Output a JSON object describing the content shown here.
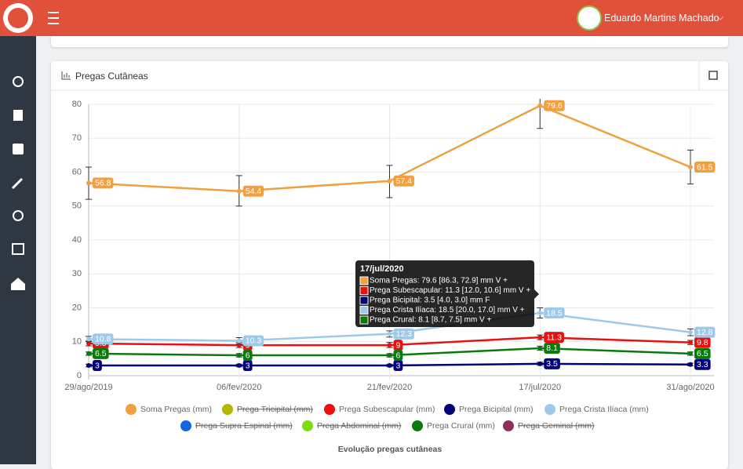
{
  "header": {
    "user_name": "Eduardo Martins Machado"
  },
  "card": {
    "title": "Pregas Cutâneas"
  },
  "chart_data": {
    "type": "line",
    "categories": [
      "29/ago/2019",
      "06/fev/2020",
      "21/fev/2020",
      "17/jul/2020",
      "31/ago/2020"
    ],
    "ylim": [
      0,
      80
    ],
    "yticks": [
      0,
      10,
      20,
      30,
      40,
      50,
      60,
      70,
      80
    ],
    "grid": true,
    "x_label": "Evolução pregas cutâneas",
    "series": [
      {
        "name": "Soma Pregas (mm)",
        "color": "#f0a040",
        "values": [
          56.8,
          54.4,
          57.4,
          79.6,
          61.5
        ],
        "high": [
          61.5,
          59,
          62,
          86.3,
          66.5
        ],
        "low": [
          52,
          50,
          52.5,
          72.9,
          56.5
        ]
      },
      {
        "name": "Prega Tricipital (mm)",
        "color": "#b5b800",
        "hidden": true
      },
      {
        "name": "Prega Subescapular (mm)",
        "color": "#e81010",
        "values": [
          9.5,
          9,
          9,
          11.3,
          9.8
        ],
        "high": [
          10.2,
          9.8,
          9.8,
          12.0,
          10.4
        ],
        "low": [
          8.8,
          8.3,
          8.3,
          10.6,
          9.2
        ]
      },
      {
        "name": "Prega Bicipital (mm)",
        "color": "#00007a",
        "values": [
          3,
          3,
          3,
          3.5,
          3.3
        ],
        "high": [
          3.4,
          3.4,
          3.4,
          4.0,
          3.7
        ],
        "low": [
          2.6,
          2.6,
          2.6,
          3.0,
          2.9
        ]
      },
      {
        "name": "Prega Crista Ilíaca (mm)",
        "color": "#9ecae9",
        "values": [
          10.8,
          10.3,
          12.3,
          18.5,
          12.8
        ],
        "high": [
          11.6,
          11.2,
          13.2,
          20.0,
          13.8
        ],
        "low": [
          10.0,
          9.4,
          11.4,
          17.0,
          11.8
        ]
      },
      {
        "name": "Prega Supra Espinal (mm)",
        "color": "#1565e0",
        "hidden": true
      },
      {
        "name": "Prega Abdominal (mm)",
        "color": "#7cdc10",
        "hidden": true
      },
      {
        "name": "Prega Crural (mm)",
        "color": "#0a7a0a",
        "values": [
          6.5,
          6,
          6,
          8.1,
          6.5
        ],
        "high": [
          7.0,
          6.5,
          6.5,
          8.7,
          7.0
        ],
        "low": [
          6.0,
          5.5,
          5.5,
          7.5,
          6.0
        ]
      },
      {
        "name": "Prega Geminal (mm)",
        "color": "#8b3060",
        "hidden": true
      }
    ],
    "tooltip": {
      "title": "17/jul/2020",
      "lines": [
        "Soma Pregas: 79.6 [86.3, 72.9] mm V +",
        "Prega Subescapular: 11.3 [12.0, 10.6] mm V +",
        "Prega Bicipital: 3.5 [4.0, 3.0] mm F",
        "Prega Crista Ilíaca: 18.5 [20.0, 17.0] mm V +",
        "Prega Crural: 8.1 [8.7, 7.5] mm V +"
      ]
    }
  }
}
